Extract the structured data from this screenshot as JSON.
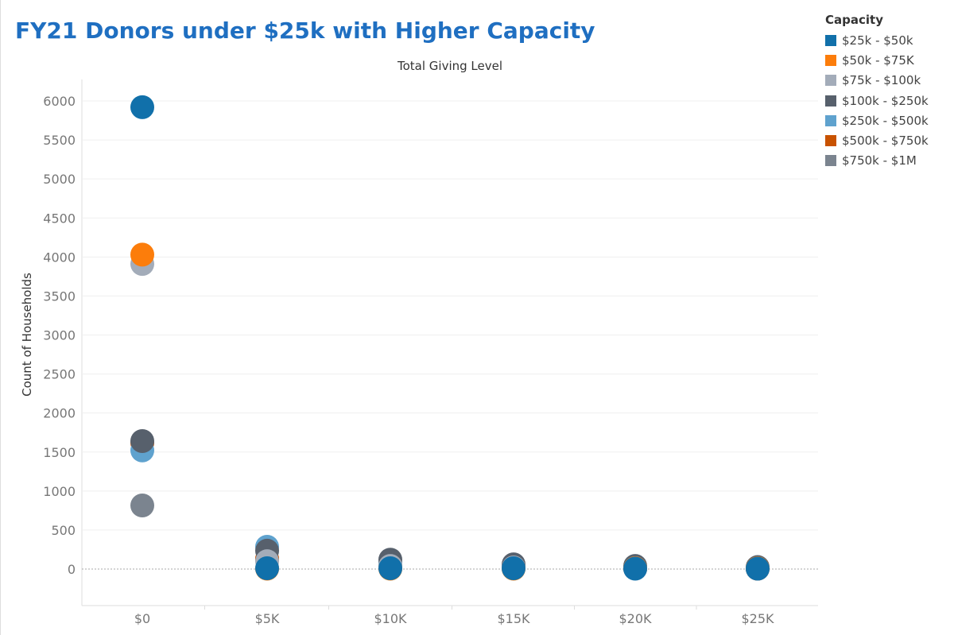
{
  "chart_data": {
    "type": "scatter",
    "title": "FY21 Donors under $25k with Higher Capacity",
    "xlabel": "Total Giving Level",
    "ylabel": "Count of Households",
    "categories": [
      "$0",
      "$5K",
      "$10K",
      "$15K",
      "$20K",
      "$25K"
    ],
    "yticks": [
      0,
      500,
      1000,
      1500,
      2000,
      2500,
      3000,
      3500,
      4000,
      4500,
      5000,
      5500,
      6000
    ],
    "ylim": [
      -500,
      6300
    ],
    "grid": true,
    "legend_title": "Capacity",
    "legend_position": "right",
    "series": [
      {
        "name": "$25k - $50k",
        "color": "#1170aa",
        "values": [
          5920,
          10,
          10,
          10,
          5,
          5
        ]
      },
      {
        "name": "$50k - $75K",
        "color": "#fc7d0b",
        "values": [
          4030,
          5,
          5,
          5,
          10,
          10
        ]
      },
      {
        "name": "$75k - $100k",
        "color": "#a3acb9",
        "values": [
          3910,
          100,
          40,
          20,
          10,
          8
        ]
      },
      {
        "name": "$100k - $250k",
        "color": "#57606c",
        "values": [
          1640,
          235,
          120,
          60,
          40,
          25
        ]
      },
      {
        "name": "$250k - $500k",
        "color": "#5fa2ce",
        "values": [
          1520,
          285,
          80,
          40,
          20,
          10
        ]
      },
      {
        "name": "$500k - $750k",
        "color": "#c85200",
        "values": [
          1620,
          130,
          40,
          20,
          10,
          5
        ]
      },
      {
        "name": "$750k - $1M",
        "color": "#7b848f",
        "values": [
          815,
          120,
          50,
          25,
          10,
          5
        ]
      }
    ]
  }
}
